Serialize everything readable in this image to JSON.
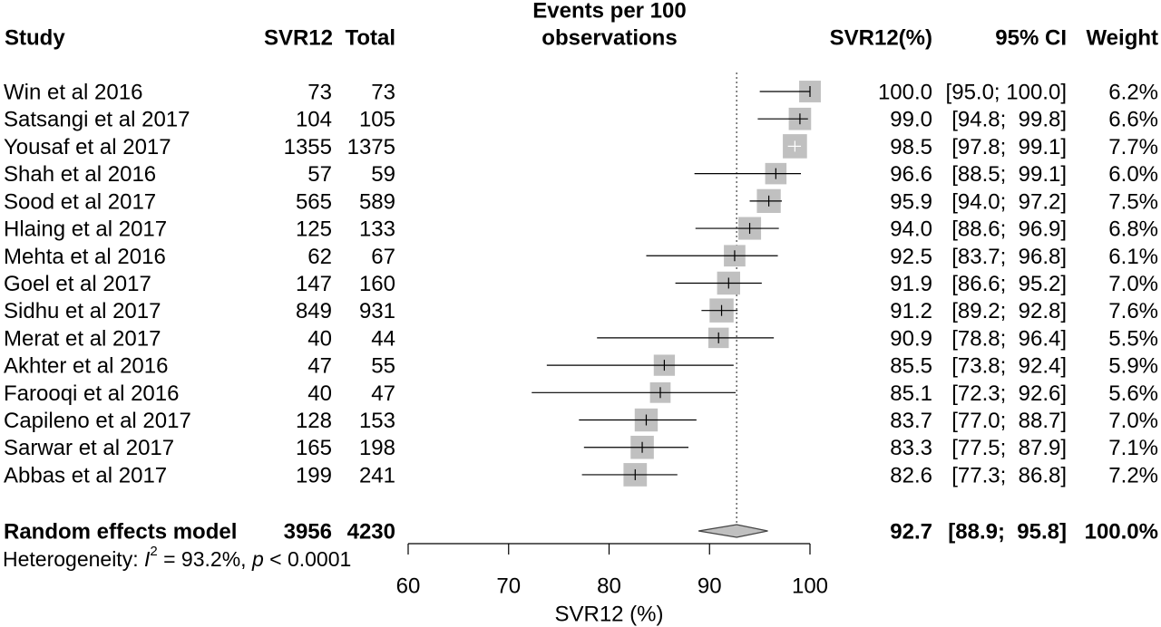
{
  "header": {
    "study": "Study",
    "events": "SVR12",
    "total": "Total",
    "plot_column": [
      "Events per 100",
      "observations"
    ],
    "svr12": "SVR12(%)",
    "ci": "95% CI",
    "weight": "Weight"
  },
  "colors": {
    "square": "#c0c0c0",
    "diamond": "#c0c0c0",
    "line": "#000000",
    "reference_line": "#404040"
  },
  "chart_data": {
    "type": "scatter",
    "xlabel": "SVR12 (%)",
    "xlim": [
      60,
      100
    ],
    "xticks": [
      60,
      70,
      80,
      90,
      100
    ],
    "grid": false,
    "studies": [
      {
        "name": "Win et al 2016",
        "events": 73,
        "total": 73,
        "svr12": 100.0,
        "ci": [
          95.0,
          100.0
        ],
        "weight": 6.2
      },
      {
        "name": "Satsangi et al 2017",
        "events": 104,
        "total": 105,
        "svr12": 99.0,
        "ci": [
          94.8,
          99.8
        ],
        "weight": 6.6
      },
      {
        "name": "Yousaf et al 2017",
        "events": 1355,
        "total": 1375,
        "svr12": 98.5,
        "ci": [
          97.8,
          99.1
        ],
        "weight": 7.7
      },
      {
        "name": "Shah et al 2016",
        "events": 57,
        "total": 59,
        "svr12": 96.6,
        "ci": [
          88.5,
          99.1
        ],
        "weight": 6.0
      },
      {
        "name": "Sood et al 2017",
        "events": 565,
        "total": 589,
        "svr12": 95.9,
        "ci": [
          94.0,
          97.2
        ],
        "weight": 7.5
      },
      {
        "name": "Hlaing et al 2017",
        "events": 125,
        "total": 133,
        "svr12": 94.0,
        "ci": [
          88.6,
          96.9
        ],
        "weight": 6.8
      },
      {
        "name": "Mehta et al 2016",
        "events": 62,
        "total": 67,
        "svr12": 92.5,
        "ci": [
          83.7,
          96.8
        ],
        "weight": 6.1
      },
      {
        "name": "Goel et al 2017",
        "events": 147,
        "total": 160,
        "svr12": 91.9,
        "ci": [
          86.6,
          95.2
        ],
        "weight": 7.0
      },
      {
        "name": "Sidhu et al 2017",
        "events": 849,
        "total": 931,
        "svr12": 91.2,
        "ci": [
          89.2,
          92.8
        ],
        "weight": 7.6
      },
      {
        "name": "Merat et al 2017",
        "events": 40,
        "total": 44,
        "svr12": 90.9,
        "ci": [
          78.8,
          96.4
        ],
        "weight": 5.5
      },
      {
        "name": "Akhter et al 2016",
        "events": 47,
        "total": 55,
        "svr12": 85.5,
        "ci": [
          73.8,
          92.4
        ],
        "weight": 5.9
      },
      {
        "name": "Farooqi et al 2016",
        "events": 40,
        "total": 47,
        "svr12": 85.1,
        "ci": [
          72.3,
          92.6
        ],
        "weight": 5.6
      },
      {
        "name": "Capileno et al 2017",
        "events": 128,
        "total": 153,
        "svr12": 83.7,
        "ci": [
          77.0,
          88.7
        ],
        "weight": 7.0
      },
      {
        "name": "Sarwar et al 2017",
        "events": 165,
        "total": 198,
        "svr12": 83.3,
        "ci": [
          77.5,
          87.9
        ],
        "weight": 7.1
      },
      {
        "name": "Abbas et al 2017",
        "events": 199,
        "total": 241,
        "svr12": 82.6,
        "ci": [
          77.3,
          86.8
        ],
        "weight": 7.2
      }
    ],
    "pooled": {
      "name": "Random effects model",
      "events": 3956,
      "total": 4230,
      "svr12": 92.7,
      "ci": [
        88.9,
        95.8
      ],
      "weight": 100.0
    }
  },
  "heterogeneity": {
    "label": "Heterogeneity: ",
    "i2_symbol": "I",
    "i2_sup": "2",
    "i2_text": " = 93.2%, ",
    "p_symbol": "p",
    "p_text": " < 0.0001"
  }
}
